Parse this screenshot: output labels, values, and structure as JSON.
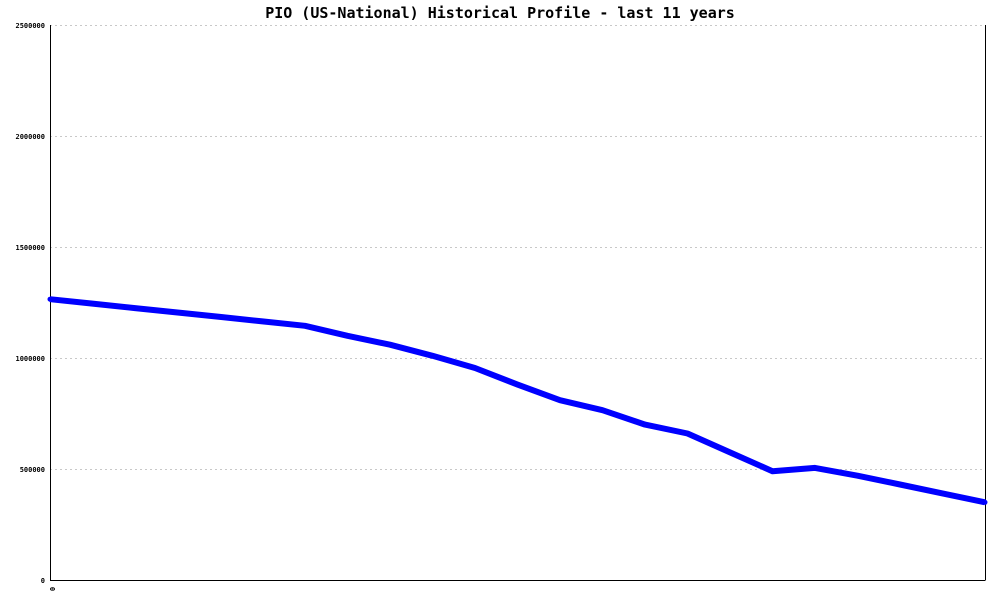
{
  "chart_data": {
    "type": "line",
    "title": "PIO (US-National) Historical Profile - last 11 years",
    "xlabel": "",
    "ylabel": "",
    "x_tick_labels": [
      "0"
    ],
    "y_ticks": [
      0,
      500000,
      1000000,
      1500000,
      2000000,
      2500000
    ],
    "y_tick_labels": [
      "0",
      "500000",
      "1000000",
      "1500000",
      "2000000",
      "2500000"
    ],
    "ylim": [
      0,
      2500000
    ],
    "xlim": [
      0,
      22
    ],
    "grid": true,
    "legend": "none",
    "series": [
      {
        "color": "#0000ff",
        "x": [
          0,
          1,
          2,
          3,
          4,
          5,
          6,
          7,
          8,
          9,
          10,
          11,
          12,
          13,
          14,
          15,
          16,
          17,
          18,
          19,
          20,
          21,
          22
        ],
        "values": [
          1265000,
          1245000,
          1225000,
          1205000,
          1185000,
          1165000,
          1145000,
          1100000,
          1060000,
          1010000,
          955000,
          880000,
          810000,
          765000,
          700000,
          660000,
          575000,
          490000,
          505000,
          470000,
          430000,
          390000,
          350000
        ]
      }
    ]
  }
}
